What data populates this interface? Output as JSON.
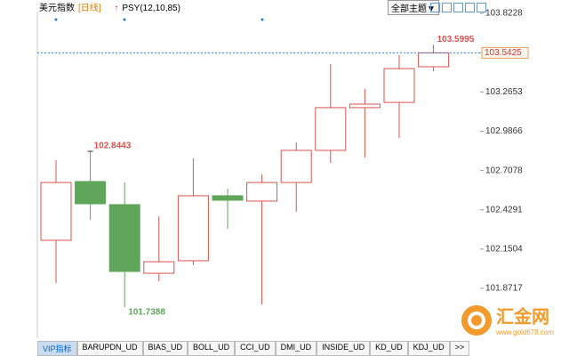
{
  "toolbar": {
    "symbol": "美元指数",
    "period": "[日线]",
    "indicator": "PSY(12,10,85)",
    "theme": "全部主题▼"
  },
  "tabs": [
    "VIP指标",
    "BARUPDN_UD",
    "BIAS_UD",
    "BOLL_UD",
    "CCI_UD",
    "DMI_UD",
    "INSIDE_UD",
    "KD_UD",
    "KDJ_UD",
    ">>"
  ],
  "watermark": {
    "brand": "汇金网",
    "site": "www.gold678.com"
  },
  "chart_data": {
    "type": "candlestick",
    "open": [
      102.213,
      102.63,
      102.466,
      101.979,
      102.068,
      102.529,
      102.491,
      102.623,
      102.851,
      103.154,
      103.191,
      103.444
    ],
    "high": [
      102.781,
      102.8443,
      102.623,
      102.383,
      102.794,
      102.579,
      102.68,
      102.907,
      103.463,
      103.286,
      103.526,
      103.5995
    ],
    "low": [
      101.91,
      102.358,
      101.7388,
      101.923,
      102.036,
      102.295,
      101.758,
      102.415,
      102.762,
      102.8,
      102.939,
      103.412
    ],
    "close": [
      102.623,
      102.472,
      101.992,
      102.061,
      102.529,
      102.497,
      102.623,
      102.851,
      103.154,
      103.179,
      103.431,
      103.5425
    ],
    "up_color": "#d9534f",
    "down_color": "#5fa55a",
    "ylim": [
      101.5185,
      103.9175
    ],
    "yticks": [
      101.8717,
      102.1504,
      102.4291,
      102.7078,
      102.9866,
      103.2653,
      103.5441,
      103.8228
    ]
  }
}
